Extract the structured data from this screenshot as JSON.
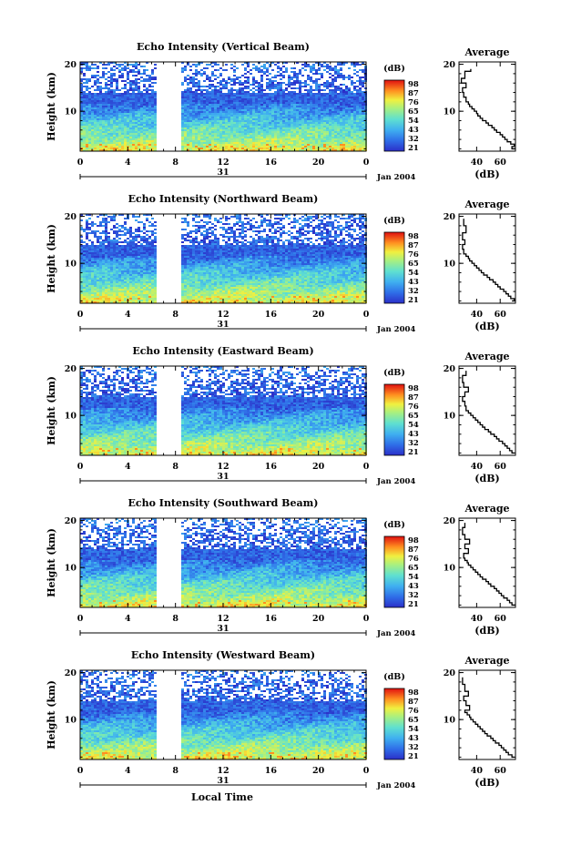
{
  "figure": {
    "bottom_label": "Local Time"
  },
  "chart_data": [
    {
      "type": "heatmap",
      "title": "Echo Intensity (Vertical Beam)",
      "ylabel": "Height (km)",
      "ylim": [
        1.5,
        20.5
      ],
      "y_ticks": [
        "10",
        "20"
      ],
      "xlim": [
        0,
        24
      ],
      "x_ticks": [
        "0",
        "4",
        "8",
        "12",
        "16",
        "20",
        "0"
      ],
      "date_day": "31",
      "date_label": "Jan 2004",
      "data_gap_hours": [
        6.6,
        8.4
      ],
      "colorbar": {
        "unit": "(dB)",
        "ticks": [
          "98",
          "87",
          "76",
          "65",
          "54",
          "43",
          "32",
          "21"
        ]
      },
      "average_profile": {
        "title": "Average",
        "xlabel": "(dB)",
        "x_ticks": [
          "40",
          "60"
        ],
        "xlim": [
          25,
          73
        ],
        "ylim": [
          1.5,
          20.5
        ],
        "y_ticks": [
          "10",
          "20"
        ],
        "x": [
          73,
          70,
          72,
          69,
          66,
          64,
          62,
          60,
          57,
          55,
          53,
          50,
          48,
          45,
          43,
          41,
          40,
          38,
          36,
          34,
          33,
          31,
          29,
          28,
          31,
          27,
          30,
          35
        ],
        "y": [
          2,
          2.5,
          3,
          3.5,
          4,
          4.5,
          5,
          5.5,
          6,
          6.5,
          7,
          7.5,
          8,
          8.5,
          9,
          9.5,
          10,
          10.5,
          11,
          11.5,
          12,
          13,
          14,
          15,
          16,
          17,
          18.5,
          19
        ]
      }
    },
    {
      "type": "heatmap",
      "title": "Echo Intensity (Northward Beam)",
      "ylabel": "Height (km)",
      "ylim": [
        1.5,
        20.5
      ],
      "y_ticks": [
        "10",
        "20"
      ],
      "xlim": [
        0,
        24
      ],
      "x_ticks": [
        "0",
        "4",
        "8",
        "12",
        "16",
        "20",
        "0"
      ],
      "date_day": "31",
      "date_label": "Jan 2004",
      "data_gap_hours": [
        6.6,
        8.4
      ],
      "colorbar": {
        "unit": "(dB)",
        "ticks": [
          "98",
          "87",
          "76",
          "65",
          "54",
          "43",
          "32",
          "21"
        ]
      },
      "average_profile": {
        "title": "Average",
        "xlabel": "(dB)",
        "x_ticks": [
          "40",
          "60"
        ],
        "xlim": [
          25,
          73
        ],
        "ylim": [
          1.5,
          20.5
        ],
        "y_ticks": [
          "10",
          "20"
        ],
        "x": [
          70,
          72,
          69,
          67,
          65,
          63,
          60,
          58,
          56,
          54,
          51,
          49,
          46,
          44,
          42,
          40,
          38,
          36,
          34,
          33,
          31,
          29,
          28,
          30,
          28,
          31,
          29
        ],
        "y": [
          2,
          2.5,
          3,
          3.5,
          4,
          4.5,
          5,
          5.5,
          6,
          6.5,
          7,
          7.5,
          8,
          8.5,
          9,
          9.5,
          10,
          10.5,
          11,
          11.5,
          12,
          13,
          14,
          15,
          16.5,
          18,
          19.5
        ]
      }
    },
    {
      "type": "heatmap",
      "title": "Echo Intensity (Eastward Beam)",
      "ylabel": "Height (km)",
      "ylim": [
        1.5,
        20.5
      ],
      "y_ticks": [
        "10",
        "20"
      ],
      "xlim": [
        0,
        24
      ],
      "x_ticks": [
        "0",
        "4",
        "8",
        "12",
        "16",
        "20",
        "0"
      ],
      "date_day": "31",
      "date_label": "Jan 2004",
      "data_gap_hours": [
        6.6,
        8.4
      ],
      "colorbar": {
        "unit": "(dB)",
        "ticks": [
          "98",
          "87",
          "76",
          "65",
          "54",
          "43",
          "32",
          "21"
        ]
      },
      "average_profile": {
        "title": "Average",
        "xlabel": "(dB)",
        "x_ticks": [
          "40",
          "60"
        ],
        "xlim": [
          25,
          73
        ],
        "ylim": [
          1.5,
          20.5
        ],
        "y_ticks": [
          "10",
          "20"
        ],
        "x": [
          72,
          70,
          68,
          66,
          64,
          62,
          59,
          57,
          55,
          52,
          50,
          47,
          45,
          43,
          41,
          39,
          37,
          35,
          33,
          31,
          30,
          28,
          30,
          33,
          29,
          28,
          31
        ],
        "y": [
          2,
          2.5,
          3,
          3.5,
          4,
          4.5,
          5,
          5.5,
          6,
          6.5,
          7,
          7.5,
          8,
          8.5,
          9,
          9.5,
          10,
          10.5,
          11,
          12,
          13,
          14,
          15,
          16,
          17,
          18.5,
          19.5
        ]
      }
    },
    {
      "type": "heatmap",
      "title": "Echo Intensity (Southward Beam)",
      "ylabel": "Height (km)",
      "ylim": [
        1.5,
        20.5
      ],
      "y_ticks": [
        "10",
        "20"
      ],
      "xlim": [
        0,
        24
      ],
      "x_ticks": [
        "0",
        "4",
        "8",
        "12",
        "16",
        "20",
        "0"
      ],
      "date_day": "31",
      "date_label": "Jan 2004",
      "data_gap_hours": [
        6.6,
        8.4
      ],
      "colorbar": {
        "unit": "(dB)",
        "ticks": [
          "98",
          "87",
          "76",
          "65",
          "54",
          "43",
          "32",
          "21"
        ]
      },
      "average_profile": {
        "title": "Average",
        "xlabel": "(dB)",
        "x_ticks": [
          "40",
          "60"
        ],
        "xlim": [
          25,
          73
        ],
        "ylim": [
          1.5,
          20.5
        ],
        "y_ticks": [
          "10",
          "20"
        ],
        "x": [
          73,
          70,
          68,
          66,
          63,
          61,
          59,
          57,
          55,
          52,
          50,
          48,
          45,
          43,
          41,
          39,
          37,
          35,
          33,
          32,
          30,
          29,
          33,
          30,
          34,
          30,
          28,
          30
        ],
        "y": [
          2,
          2.5,
          3,
          3.5,
          4,
          4.5,
          5,
          5.5,
          6,
          6.5,
          7,
          7.5,
          8,
          8.5,
          9,
          9.5,
          10,
          10.5,
          11,
          11.5,
          12,
          13,
          14,
          15,
          16,
          17,
          18.5,
          19.5
        ]
      }
    },
    {
      "type": "heatmap",
      "title": "Echo Intensity (Westward Beam)",
      "ylabel": "Height (km)",
      "ylim": [
        1.5,
        20.5
      ],
      "y_ticks": [
        "10",
        "20"
      ],
      "xlim": [
        0,
        24
      ],
      "x_ticks": [
        "0",
        "4",
        "8",
        "12",
        "16",
        "20",
        "0"
      ],
      "date_day": "31",
      "date_label": "Jan 2004",
      "data_gap_hours": [
        6.6,
        8.4
      ],
      "colorbar": {
        "unit": "(dB)",
        "ticks": [
          "98",
          "87",
          "76",
          "65",
          "54",
          "43",
          "32",
          "21"
        ]
      },
      "average_profile": {
        "title": "Average",
        "xlabel": "(dB)",
        "x_ticks": [
          "40",
          "60"
        ],
        "xlim": [
          25,
          73
        ],
        "ylim": [
          1.5,
          20.5
        ],
        "y_ticks": [
          "10",
          "20"
        ],
        "x": [
          72,
          70,
          67,
          65,
          63,
          61,
          59,
          56,
          54,
          52,
          49,
          47,
          45,
          43,
          41,
          39,
          37,
          35,
          34,
          32,
          30,
          34,
          31,
          29,
          33,
          30,
          28
        ],
        "y": [
          2,
          2.5,
          3,
          3.5,
          4,
          4.5,
          5,
          5.5,
          6,
          6.5,
          7,
          7.5,
          8,
          8.5,
          9,
          9.5,
          10,
          10.5,
          11,
          11.5,
          12,
          13,
          14,
          15,
          16,
          17.5,
          19
        ]
      }
    }
  ]
}
